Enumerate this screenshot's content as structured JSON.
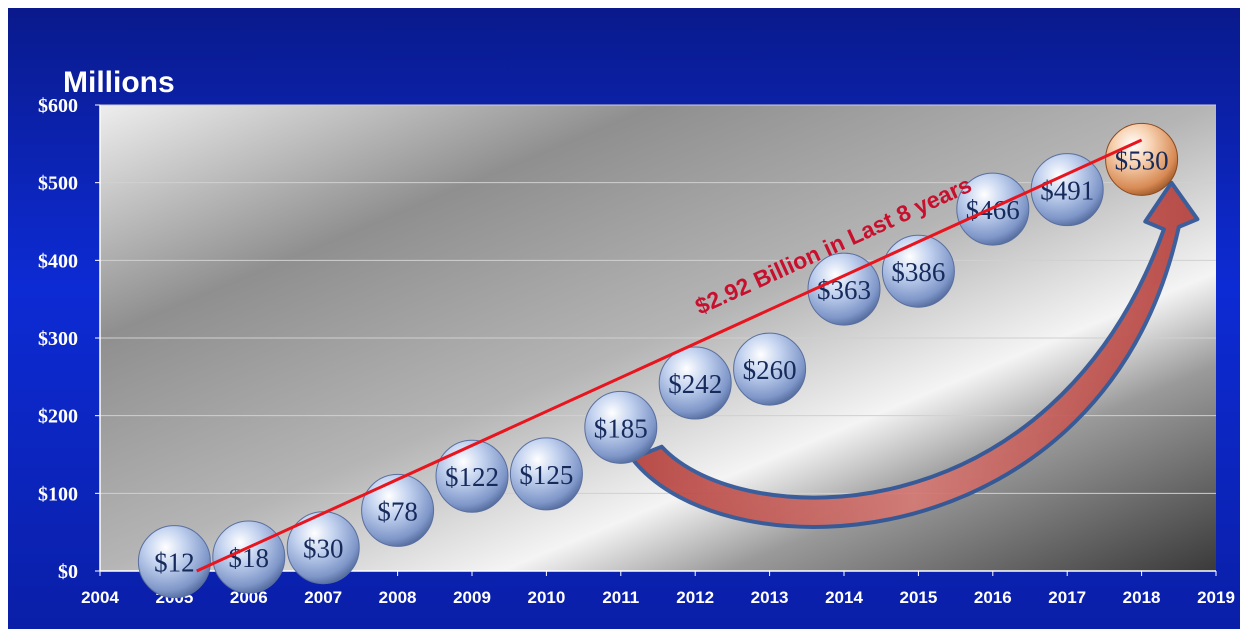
{
  "chart_data": {
    "type": "scatter",
    "unit_label": "Millions",
    "x_ticks": [
      "2004",
      "2005",
      "2006",
      "2007",
      "2008",
      "2009",
      "2010",
      "2011",
      "2012",
      "2013",
      "2014",
      "2015",
      "2016",
      "2017",
      "2018",
      "2019"
    ],
    "y_ticks": [
      "$0",
      "$100",
      "$200",
      "$300",
      "$400",
      "$500",
      "$600"
    ],
    "xlim": [
      2004,
      2019
    ],
    "ylim": [
      0,
      600
    ],
    "points": [
      {
        "x": 2005,
        "y": 12,
        "label": "$12"
      },
      {
        "x": 2006,
        "y": 18,
        "label": "$18"
      },
      {
        "x": 2007,
        "y": 30,
        "label": "$30"
      },
      {
        "x": 2008,
        "y": 78,
        "label": "$78"
      },
      {
        "x": 2009,
        "y": 122,
        "label": "$122"
      },
      {
        "x": 2010,
        "y": 125,
        "label": "$125"
      },
      {
        "x": 2011,
        "y": 185,
        "label": "$185"
      },
      {
        "x": 2012,
        "y": 242,
        "label": "$242"
      },
      {
        "x": 2013,
        "y": 260,
        "label": "$260"
      },
      {
        "x": 2014,
        "y": 363,
        "label": "$363"
      },
      {
        "x": 2015,
        "y": 386,
        "label": "$386"
      },
      {
        "x": 2016,
        "y": 466,
        "label": "$466"
      },
      {
        "x": 2017,
        "y": 491,
        "label": "$491"
      },
      {
        "x": 2018,
        "y": 530,
        "label": "$530",
        "highlight": true
      }
    ],
    "trendline": {
      "x": [
        2005.3,
        2018
      ],
      "y": [
        0,
        555
      ]
    },
    "annotation": "$2.92 Billion in Last 8 years",
    "grid": true,
    "colors": {
      "background": "#0d2bd4",
      "trend": "#e8141e",
      "annotation": "#c8102e",
      "marker": "#a9bde6",
      "highlight": "#e0a070",
      "arrow_fill": "#c0504d",
      "arrow_stroke": "#2f5597"
    }
  }
}
